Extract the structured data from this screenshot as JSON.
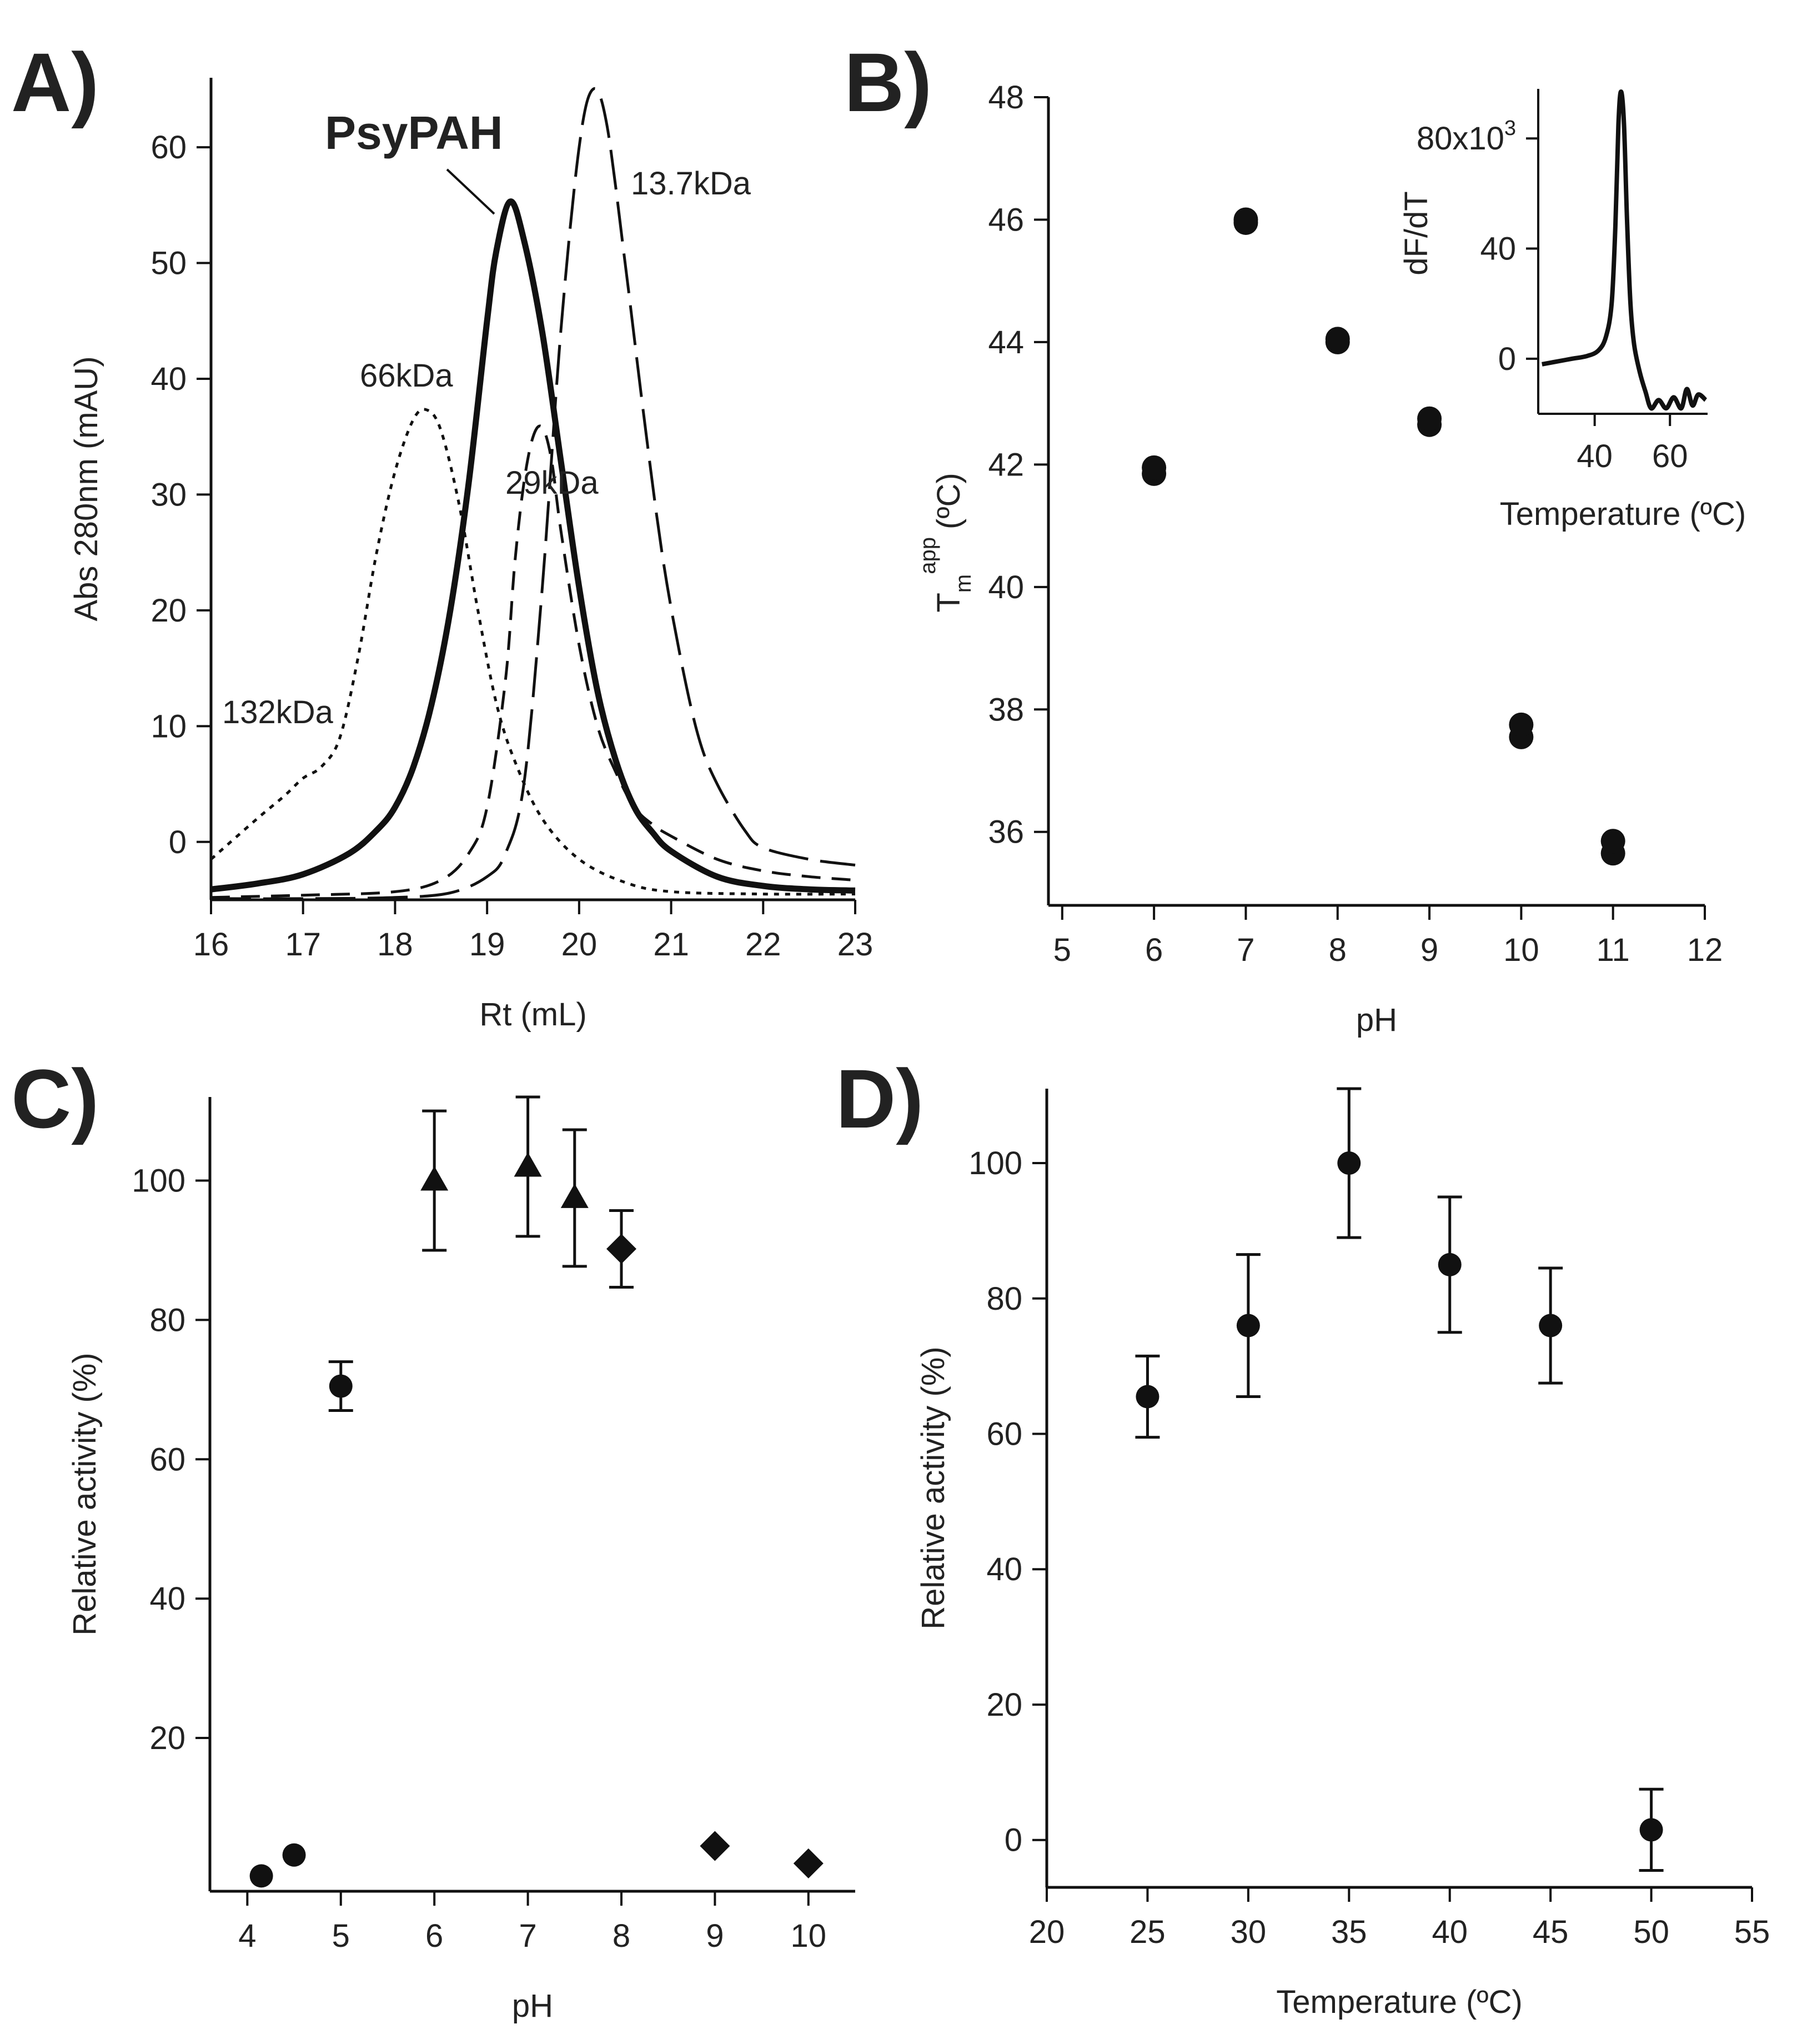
{
  "chart_data": [
    {
      "panel": "A)",
      "type": "line",
      "xlabel": "Rt (mL)",
      "ylabel": "Abs 280nm (mAU)",
      "xlim": [
        16,
        23
      ],
      "ylim": [
        -5,
        66
      ],
      "xticks": [
        16,
        17,
        18,
        19,
        20,
        21,
        22,
        23
      ],
      "yticks": [
        0,
        10,
        20,
        30,
        40,
        50,
        60
      ],
      "series": [
        {
          "name": "PsyPAH",
          "label": "PsyPAH",
          "style": "solid-thick",
          "x": [
            16.0,
            16.5,
            17.0,
            17.5,
            17.8,
            18.0,
            18.2,
            18.4,
            18.6,
            18.8,
            19.0,
            19.1,
            19.25,
            19.4,
            19.6,
            19.8,
            20.0,
            20.2,
            20.4,
            20.6,
            20.8,
            21.0,
            21.5,
            22.0,
            22.5,
            23.0
          ],
          "y": [
            -4.1,
            -3.6,
            -2.8,
            -1.0,
            1.0,
            3.0,
            6.5,
            12.0,
            20.0,
            31.0,
            45.0,
            51.0,
            55.3,
            52.0,
            44.0,
            33.0,
            22.0,
            13.0,
            7.0,
            3.0,
            0.8,
            -0.8,
            -3.0,
            -3.8,
            -4.1,
            -4.2
          ]
        },
        {
          "name": "66kDa",
          "label": "66kDa",
          "style": "dotted",
          "x": [
            16.0,
            16.5,
            16.8,
            17.0,
            17.2,
            17.4,
            17.6,
            17.8,
            18.0,
            18.2,
            18.35,
            18.5,
            18.7,
            18.9,
            19.1,
            19.3,
            19.6,
            20.0,
            20.5,
            21.0,
            22.0,
            23.0
          ],
          "y": [
            -1.5,
            2.0,
            4.0,
            5.5,
            6.5,
            9.0,
            16.0,
            25.0,
            32.0,
            36.5,
            37.3,
            35.5,
            29.0,
            20.0,
            12.0,
            7.0,
            2.0,
            -1.5,
            -3.5,
            -4.3,
            -4.5,
            -4.5
          ]
        },
        {
          "name": "29kDa",
          "label": "29kDa",
          "style": "dashed",
          "x": [
            16.0,
            17.0,
            18.0,
            18.5,
            18.8,
            19.0,
            19.2,
            19.3,
            19.4,
            19.5,
            19.6,
            19.7,
            19.8,
            20.0,
            20.2,
            20.4,
            20.6,
            20.8,
            21.0,
            21.5,
            22.0,
            22.5,
            23.0
          ],
          "y": [
            -4.8,
            -4.6,
            -4.3,
            -3.3,
            -1.0,
            3.0,
            14.0,
            24.0,
            31.0,
            35.0,
            35.8,
            33.0,
            27.0,
            17.0,
            10.0,
            6.0,
            3.0,
            1.5,
            0.5,
            -1.5,
            -2.5,
            -3.0,
            -3.3
          ]
        },
        {
          "name": "13.7kDa",
          "label": "13.7kDa",
          "style": "long-dashed",
          "x": [
            16.0,
            17.0,
            18.0,
            18.6,
            19.0,
            19.2,
            19.4,
            19.6,
            19.8,
            20.0,
            20.15,
            20.3,
            20.5,
            20.7,
            20.9,
            21.1,
            21.3,
            21.5,
            21.8,
            22.0,
            22.5,
            23.0
          ],
          "y": [
            -4.9,
            -4.9,
            -4.8,
            -4.4,
            -3.0,
            -1.0,
            5.0,
            22.0,
            44.0,
            60.0,
            65.0,
            62.0,
            50.0,
            37.0,
            25.0,
            16.0,
            9.0,
            5.0,
            1.0,
            -0.5,
            -1.5,
            -2.0
          ]
        }
      ],
      "annotations": [
        "PsyPAH",
        "66kDa",
        "29kDa",
        "13.7kDa",
        "132kDa"
      ]
    },
    {
      "panel": "B)",
      "type": "scatter",
      "xlabel": "pH",
      "ylabel_main": "T",
      "ylabel_sub": "m",
      "ylabel_sup": "app",
      "ylabel_unit": "(ºC)",
      "xlim": [
        4.85,
        12
      ],
      "ylim": [
        34.8,
        48
      ],
      "xticks": [
        5,
        6,
        7,
        8,
        9,
        10,
        11,
        12
      ],
      "yticks": [
        36,
        38,
        40,
        42,
        44,
        46,
        48
      ],
      "points": [
        {
          "x": 6,
          "y": 41.85
        },
        {
          "x": 6,
          "y": 41.95
        },
        {
          "x": 7,
          "y": 45.95
        },
        {
          "x": 7,
          "y": 46.0
        },
        {
          "x": 8,
          "y": 44.0
        },
        {
          "x": 8,
          "y": 44.05
        },
        {
          "x": 9,
          "y": 42.65
        },
        {
          "x": 9,
          "y": 42.75
        },
        {
          "x": 10,
          "y": 37.55
        },
        {
          "x": 10,
          "y": 37.75
        },
        {
          "x": 11,
          "y": 35.65
        },
        {
          "x": 11,
          "y": 35.85
        }
      ],
      "inset": {
        "type": "line",
        "xlabel": "Temperature (ºC)",
        "ylabel": "dF/dT",
        "xlim": [
          25,
          70
        ],
        "ylim": [
          -20,
          98
        ],
        "xticks": [
          40,
          60
        ],
        "ytick_labels": [
          "0",
          "40",
          "80x10"
        ],
        "ytick_values": [
          0,
          40,
          80
        ],
        "ytick_top_sup": "3",
        "x": [
          26,
          30,
          34,
          38,
          41,
          43,
          44.5,
          45.5,
          46.3,
          47,
          47.8,
          48.6,
          49.5,
          50.5,
          52,
          53.5,
          55,
          57,
          59,
          61,
          63,
          64.5,
          66,
          67.5,
          69.5
        ],
        "y": [
          -2,
          -1,
          0,
          1,
          3,
          8,
          20,
          48,
          85,
          97,
          85,
          50,
          20,
          5,
          -5,
          -12,
          -18,
          -15,
          -18,
          -14,
          -18,
          -11,
          -17,
          -13,
          -15
        ]
      }
    },
    {
      "panel": "C)",
      "type": "scatter",
      "xlabel": "pH",
      "ylabel": "Relative activity (%)",
      "xlim": [
        3.6,
        10.5
      ],
      "ylim": [
        -2,
        112
      ],
      "xticks": [
        4,
        5,
        6,
        7,
        8,
        9,
        10
      ],
      "yticks": [
        20,
        40,
        60,
        80,
        100
      ],
      "series": [
        {
          "name": "circle",
          "marker": "circle",
          "x": [
            4.15,
            4.5,
            5
          ],
          "y": [
            0.2,
            3.2,
            70.5
          ],
          "err": [
            0,
            0,
            3.5
          ]
        },
        {
          "name": "triangle",
          "marker": "triangle",
          "x": [
            6,
            7,
            7.5
          ],
          "y": [
            100,
            102,
            97.5
          ],
          "err": [
            10,
            10,
            9.8
          ]
        },
        {
          "name": "diamond",
          "marker": "diamond",
          "x": [
            8,
            9,
            10
          ],
          "y": [
            90.2,
            4.5,
            2.0
          ],
          "err": [
            5.5,
            0,
            0
          ]
        }
      ]
    },
    {
      "panel": "D)",
      "type": "scatter",
      "xlabel": "Temperature (ºC)",
      "ylabel": "Relative activity (%)",
      "xlim": [
        20,
        55
      ],
      "ylim": [
        -7,
        111
      ],
      "xticks": [
        20,
        25,
        30,
        35,
        40,
        45,
        50,
        55
      ],
      "yticks": [
        0,
        20,
        40,
        60,
        80,
        100
      ],
      "series": [
        {
          "name": "circle",
          "marker": "circle",
          "x": [
            25,
            30,
            35,
            40,
            45,
            50
          ],
          "y": [
            65.5,
            76,
            100,
            85,
            76,
            1.5
          ],
          "err": [
            6,
            10.5,
            11,
            10,
            8.5,
            6
          ]
        }
      ]
    }
  ]
}
